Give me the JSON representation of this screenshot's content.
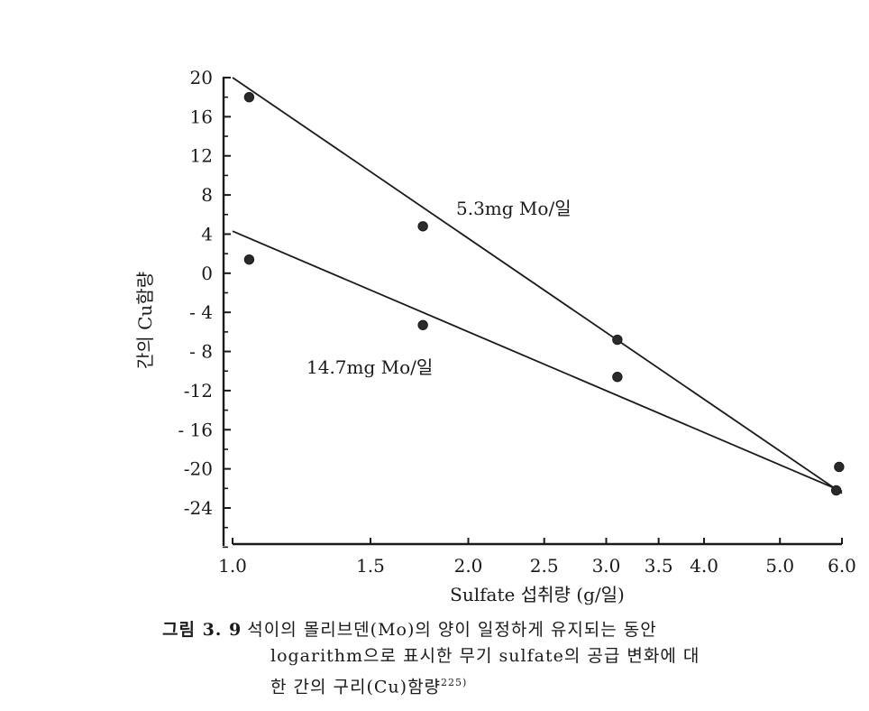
{
  "chart_data": {
    "type": "line",
    "x_scale": "log",
    "y_ticks": [
      "20",
      "16",
      "12",
      "8",
      "4",
      "0",
      "- 4",
      "- 8",
      "-12",
      "- 16",
      "-20",
      "-24"
    ],
    "y_tick_values": [
      20,
      16,
      12,
      8,
      4,
      0,
      -4,
      -8,
      -12,
      -16,
      -20,
      -24
    ],
    "x_ticks": [
      "1.0",
      "1.5",
      "2.0",
      "2.5",
      "3.0",
      "3.5",
      "4.0",
      "5.0",
      "6.0"
    ],
    "x_tick_values": [
      1.0,
      1.5,
      2.0,
      2.5,
      3.0,
      3.5,
      4.0,
      5.0,
      6.0
    ],
    "xlabel": "Sulfate 섭취량 (g/일)",
    "ylabel": "간의 Cu함량",
    "xlim": [
      1.0,
      6.0
    ],
    "ylim": [
      -24,
      20
    ],
    "series": [
      {
        "name": "5.3mg Mo/일",
        "points": [
          {
            "x": 1.05,
            "y": 18
          },
          {
            "x": 1.75,
            "y": 4.8
          },
          {
            "x": 3.1,
            "y": -6.8
          },
          {
            "x": 5.95,
            "y": -19.8
          }
        ],
        "fit_line": [
          {
            "x": 1.0,
            "y": 20
          },
          {
            "x": 6.0,
            "y": -22.5
          }
        ]
      },
      {
        "name": "14.7mg Mo/일",
        "points": [
          {
            "x": 1.05,
            "y": 1.4
          },
          {
            "x": 1.75,
            "y": -5.3
          },
          {
            "x": 3.1,
            "y": -10.6
          },
          {
            "x": 5.9,
            "y": -22.2
          }
        ],
        "fit_line": [
          {
            "x": 1.0,
            "y": 4.3
          },
          {
            "x": 6.0,
            "y": -22.3
          }
        ]
      }
    ]
  },
  "caption": {
    "figure_number": "그림 3. 9",
    "line1": "석이의 몰리브덴(Mo)의 양이 일정하게 유지되는 동안",
    "line2": "logarithm으로 표시한 무기 sulfate의 공급 변화에 대",
    "line3": "한 간의 구리(Cu)함량",
    "reference": "225)"
  }
}
